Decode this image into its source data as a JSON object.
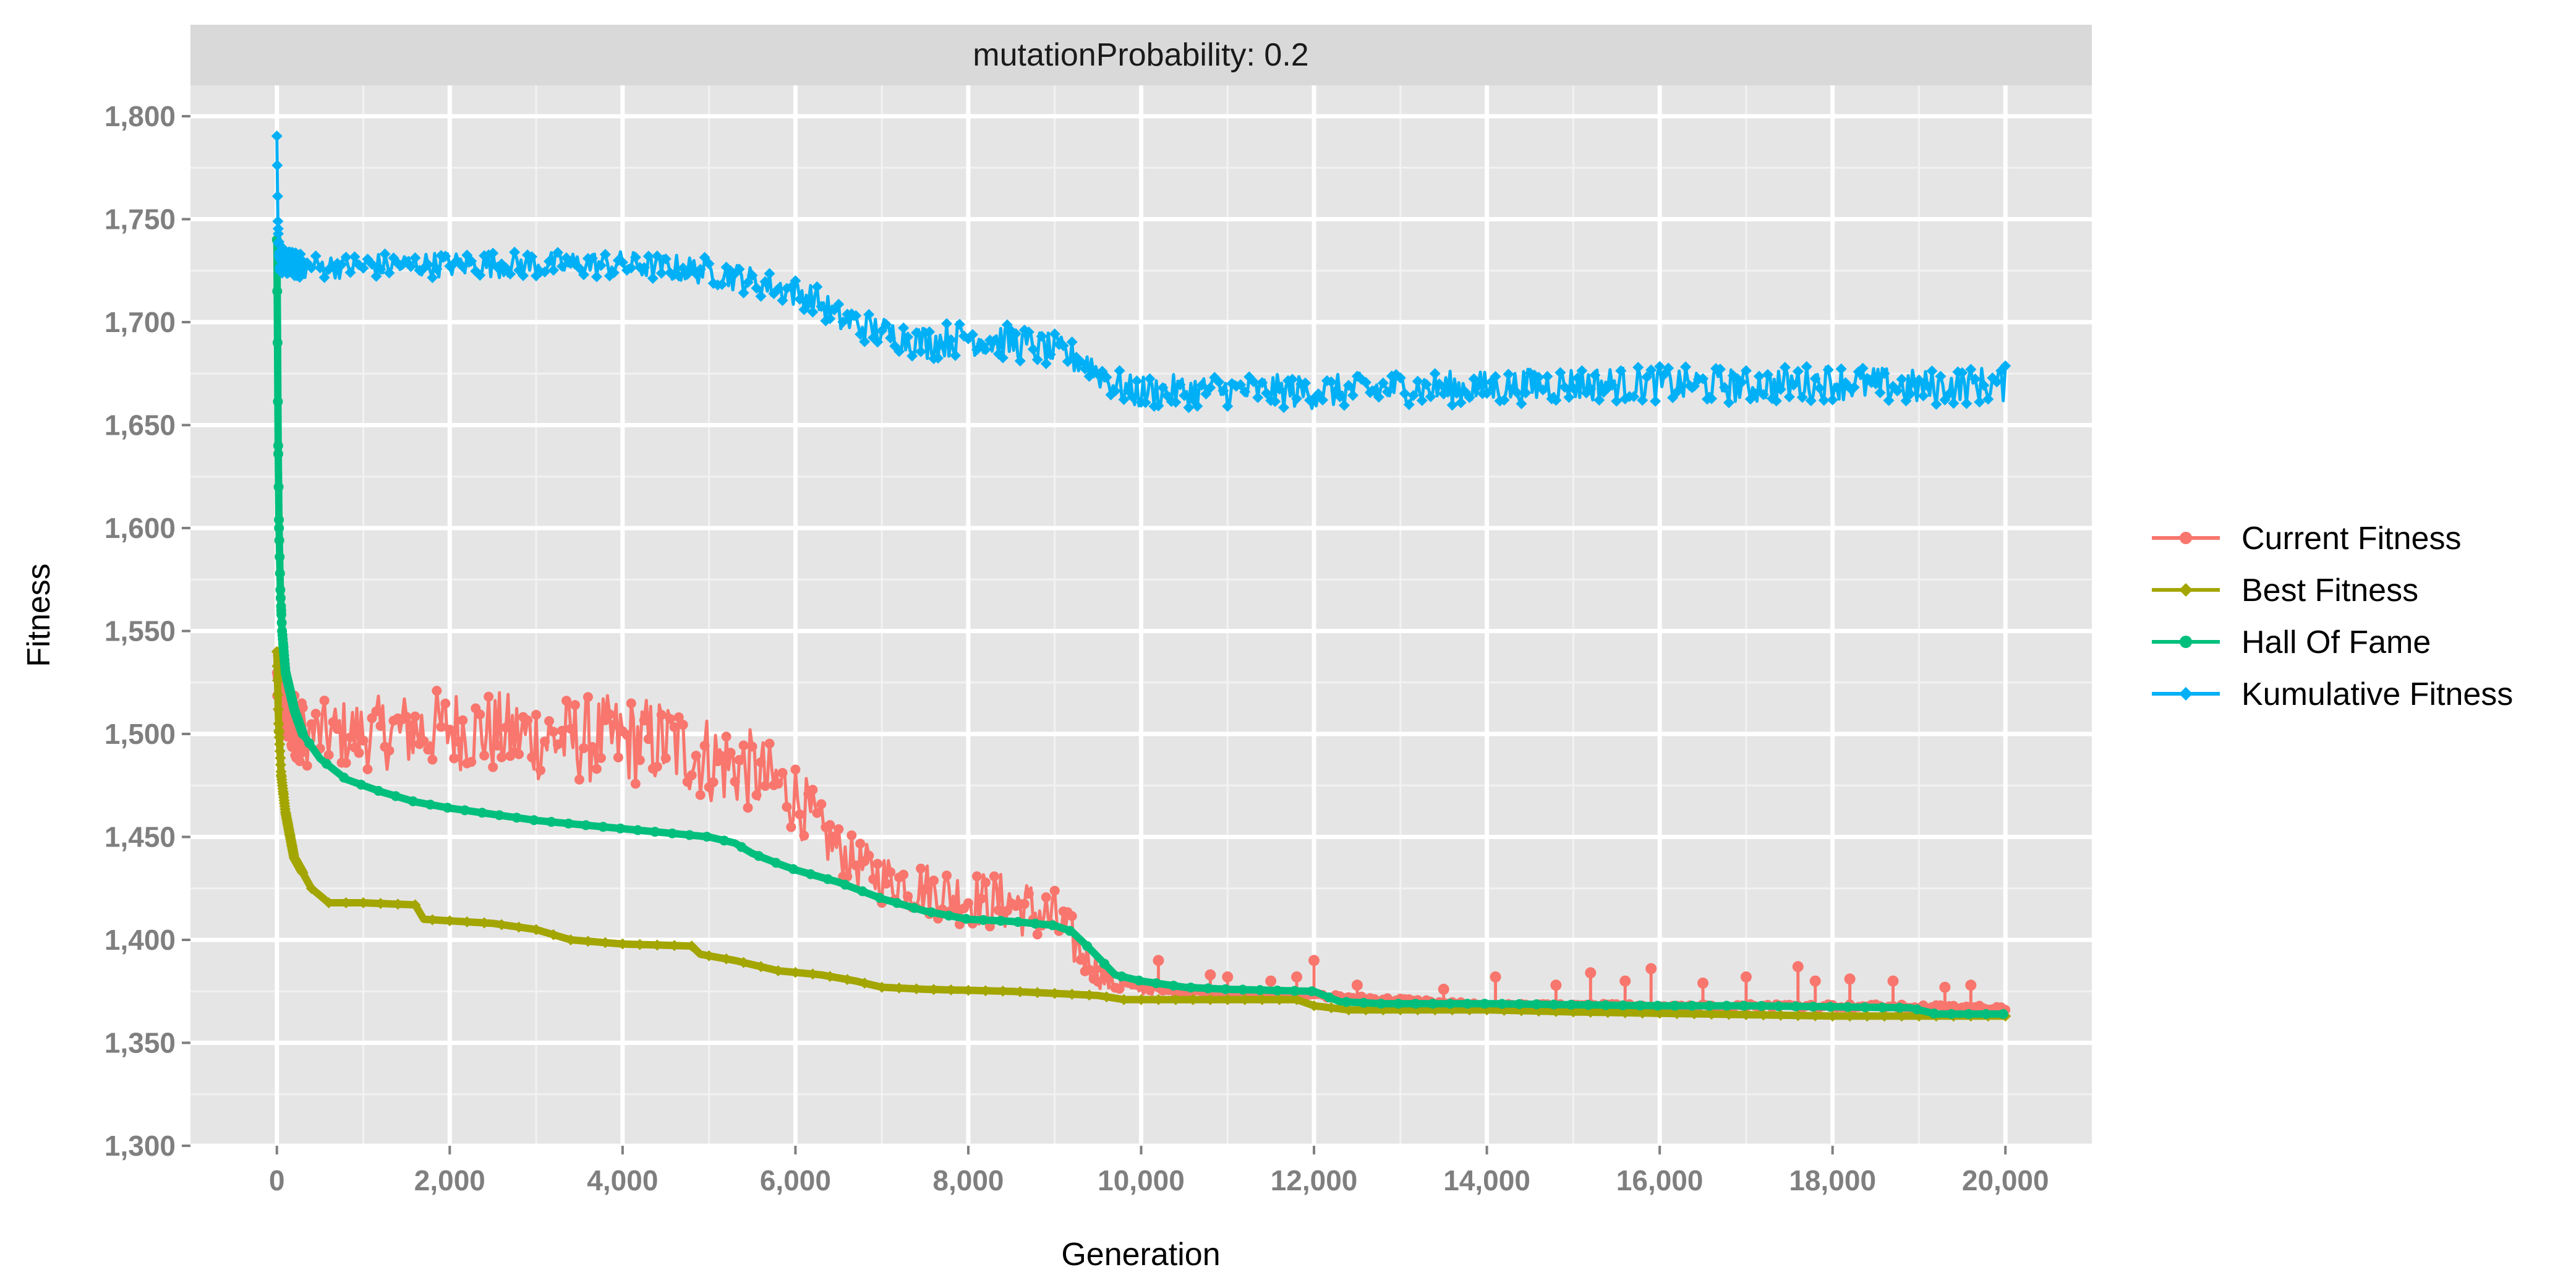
{
  "chart_data": {
    "type": "line",
    "facet_label": "mutationProbability: 0.2",
    "xlabel": "Generation",
    "ylabel": "Fitness",
    "xlim": [
      -1000,
      21000
    ],
    "ylim": [
      1300,
      1815
    ],
    "x_ticks": [
      0,
      2000,
      4000,
      6000,
      8000,
      10000,
      12000,
      14000,
      16000,
      18000,
      20000
    ],
    "x_tick_labels": [
      "0",
      "2,000",
      "4,000",
      "6,000",
      "8,000",
      "10,000",
      "12,000",
      "14,000",
      "16,000",
      "18,000",
      "20,000"
    ],
    "y_ticks": [
      1300,
      1350,
      1400,
      1450,
      1500,
      1550,
      1600,
      1650,
      1700,
      1750,
      1800
    ],
    "y_tick_labels": [
      "1,300",
      "1,350",
      "1,400",
      "1,450",
      "1,500",
      "1,550",
      "1,600",
      "1,650",
      "1,700",
      "1,750",
      "1,800"
    ],
    "grid": true,
    "legend_position": "right",
    "series": [
      {
        "name": "Current Fitness",
        "color": "#F8766D",
        "marker": "circle",
        "noise": [
          [
            0,
            15
          ],
          [
            2000,
            20
          ],
          [
            4000,
            22
          ],
          [
            5000,
            22
          ],
          [
            6000,
            18
          ],
          [
            6500,
            12
          ],
          [
            8000,
            14
          ],
          [
            9000,
            15
          ],
          [
            9400,
            10
          ],
          [
            9700,
            4
          ],
          [
            10500,
            1
          ],
          [
            20000,
            1
          ]
        ],
        "spikes": [
          [
            10200,
            1390
          ],
          [
            10800,
            1383
          ],
          [
            11000,
            1382
          ],
          [
            11500,
            1380
          ],
          [
            11800,
            1382
          ],
          [
            12000,
            1390
          ],
          [
            12500,
            1378
          ],
          [
            13500,
            1376
          ],
          [
            14100,
            1382
          ],
          [
            14800,
            1378
          ],
          [
            15200,
            1384
          ],
          [
            15600,
            1380
          ],
          [
            15900,
            1386
          ],
          [
            16500,
            1379
          ],
          [
            17000,
            1382
          ],
          [
            17600,
            1387
          ],
          [
            17800,
            1380
          ],
          [
            18200,
            1381
          ],
          [
            18700,
            1380
          ],
          [
            19300,
            1377
          ],
          [
            19600,
            1378
          ]
        ],
        "points": [
          [
            0,
            1525
          ],
          [
            100,
            1510
          ],
          [
            300,
            1500
          ],
          [
            1000,
            1500
          ],
          [
            2000,
            1503
          ],
          [
            3000,
            1498
          ],
          [
            4000,
            1497
          ],
          [
            4500,
            1496
          ],
          [
            5000,
            1488
          ],
          [
            5500,
            1482
          ],
          [
            6000,
            1470
          ],
          [
            6300,
            1452
          ],
          [
            6600,
            1440
          ],
          [
            7000,
            1430
          ],
          [
            7500,
            1425
          ],
          [
            8000,
            1420
          ],
          [
            8500,
            1418
          ],
          [
            9000,
            1410
          ],
          [
            9300,
            1395
          ],
          [
            9600,
            1380
          ],
          [
            10000,
            1376
          ],
          [
            10500,
            1375
          ],
          [
            12000,
            1373
          ],
          [
            14000,
            1368
          ],
          [
            16000,
            1368
          ],
          [
            18000,
            1368
          ],
          [
            20000,
            1367
          ]
        ]
      },
      {
        "name": "Best Fitness",
        "color": "#A3A500",
        "marker": "diamond",
        "points": [
          [
            0,
            1540
          ],
          [
            20,
            1505
          ],
          [
            50,
            1480
          ],
          [
            100,
            1462
          ],
          [
            200,
            1440
          ],
          [
            400,
            1425
          ],
          [
            600,
            1418
          ],
          [
            1000,
            1418
          ],
          [
            1600,
            1417
          ],
          [
            1700,
            1410
          ],
          [
            2500,
            1408
          ],
          [
            3000,
            1405
          ],
          [
            3400,
            1400
          ],
          [
            4000,
            1398
          ],
          [
            4800,
            1397
          ],
          [
            4900,
            1393
          ],
          [
            5300,
            1390
          ],
          [
            5800,
            1385
          ],
          [
            6300,
            1383
          ],
          [
            6700,
            1380
          ],
          [
            7000,
            1377
          ],
          [
            7500,
            1376
          ],
          [
            8500,
            1375
          ],
          [
            9500,
            1373
          ],
          [
            9800,
            1371
          ],
          [
            10500,
            1371
          ],
          [
            11800,
            1371
          ],
          [
            12000,
            1368
          ],
          [
            12400,
            1366
          ],
          [
            14000,
            1366
          ],
          [
            15000,
            1365
          ],
          [
            16500,
            1364
          ],
          [
            18000,
            1363
          ],
          [
            20000,
            1363
          ]
        ]
      },
      {
        "name": "Hall Of Fame",
        "color": "#00BF7D",
        "marker": "circle",
        "points": [
          [
            0,
            1740
          ],
          [
            8,
            1690
          ],
          [
            15,
            1640
          ],
          [
            25,
            1600
          ],
          [
            40,
            1570
          ],
          [
            60,
            1550
          ],
          [
            100,
            1530
          ],
          [
            200,
            1512
          ],
          [
            300,
            1500
          ],
          [
            500,
            1488
          ],
          [
            800,
            1478
          ],
          [
            1200,
            1472
          ],
          [
            1600,
            1467
          ],
          [
            2000,
            1464
          ],
          [
            2500,
            1461
          ],
          [
            3000,
            1458
          ],
          [
            3500,
            1456
          ],
          [
            4000,
            1454
          ],
          [
            4500,
            1452
          ],
          [
            5000,
            1450
          ],
          [
            5300,
            1447
          ],
          [
            5500,
            1442
          ],
          [
            5800,
            1437
          ],
          [
            6000,
            1434
          ],
          [
            6500,
            1428
          ],
          [
            7000,
            1420
          ],
          [
            7500,
            1414
          ],
          [
            8000,
            1410
          ],
          [
            8500,
            1409
          ],
          [
            9000,
            1407
          ],
          [
            9200,
            1404
          ],
          [
            9400,
            1396
          ],
          [
            9700,
            1383
          ],
          [
            10000,
            1380
          ],
          [
            10500,
            1377
          ],
          [
            11000,
            1376
          ],
          [
            12000,
            1375
          ],
          [
            12300,
            1370
          ],
          [
            12800,
            1369
          ],
          [
            14000,
            1369
          ],
          [
            16000,
            1368
          ],
          [
            17000,
            1368
          ],
          [
            18900,
            1367
          ],
          [
            19200,
            1364
          ],
          [
            20000,
            1364
          ]
        ]
      },
      {
        "name": "Kumulative Fitness",
        "color": "#00B0F6",
        "marker": "diamond",
        "noise": [
          [
            0,
            6
          ],
          [
            6000,
            7
          ],
          [
            8000,
            9
          ],
          [
            9500,
            8
          ],
          [
            20000,
            9
          ]
        ],
        "points": [
          [
            0,
            1795
          ],
          [
            8,
            1765
          ],
          [
            15,
            1745
          ],
          [
            30,
            1730
          ],
          [
            300,
            1727
          ],
          [
            2000,
            1728
          ],
          [
            4000,
            1728
          ],
          [
            5000,
            1725
          ],
          [
            5500,
            1720
          ],
          [
            6200,
            1712
          ],
          [
            6500,
            1702
          ],
          [
            7000,
            1695
          ],
          [
            7500,
            1690
          ],
          [
            8000,
            1693
          ],
          [
            8500,
            1690
          ],
          [
            9000,
            1686
          ],
          [
            9400,
            1680
          ],
          [
            9600,
            1672
          ],
          [
            9900,
            1666
          ],
          [
            11000,
            1667
          ],
          [
            12000,
            1666
          ],
          [
            13000,
            1668
          ],
          [
            14000,
            1668
          ],
          [
            15000,
            1670
          ],
          [
            16000,
            1670
          ],
          [
            17000,
            1669
          ],
          [
            18000,
            1671
          ],
          [
            19000,
            1668
          ],
          [
            20000,
            1670
          ]
        ]
      }
    ]
  }
}
